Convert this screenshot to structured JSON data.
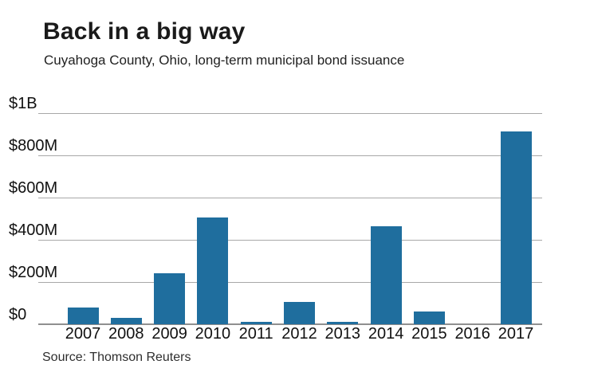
{
  "header": {
    "title": "Back in a big way",
    "subtitle": "Cuyahoga County, Ohio, long-term municipal bond issuance"
  },
  "source_note": "Source: Thomson Reuters",
  "colors": {
    "bar": "#1f6e9e",
    "gridline": "#a8a8a8",
    "axis_line": "#8f8f8f",
    "title_text": "#1a1a1a",
    "background": "#ffffff"
  },
  "chart_data": {
    "type": "bar",
    "title": "Back in a big way",
    "subtitle": "Cuyahoga County, Ohio, long-term municipal bond issuance",
    "categories": [
      "2007",
      "2008",
      "2009",
      "2010",
      "2011",
      "2012",
      "2013",
      "2014",
      "2015",
      "2016",
      "2017"
    ],
    "values": [
      80,
      30,
      240,
      505,
      10,
      105,
      10,
      465,
      60,
      0,
      915
    ],
    "unit": "USD millions",
    "xlabel": "",
    "ylabel": "",
    "ylim": [
      0,
      1000
    ],
    "yticks": [
      {
        "value": 0,
        "label": "$0"
      },
      {
        "value": 200,
        "label": "$200M"
      },
      {
        "value": 400,
        "label": "$400M"
      },
      {
        "value": 600,
        "label": "$600M"
      },
      {
        "value": 800,
        "label": "$800M"
      },
      {
        "value": 1000,
        "label": "$1B"
      }
    ],
    "grid": true,
    "legend": false,
    "bar_color": "#1f6e9e",
    "source": "Source: Thomson Reuters"
  }
}
